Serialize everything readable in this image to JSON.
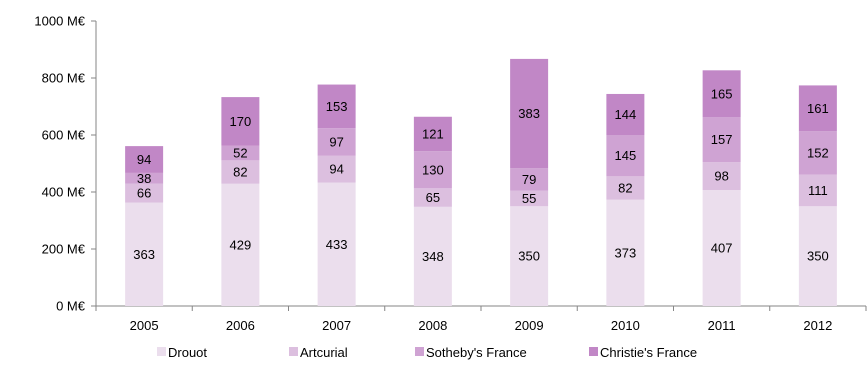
{
  "chart_data": {
    "type": "bar",
    "stacked": true,
    "categories": [
      "2005",
      "2006",
      "2007",
      "2008",
      "2009",
      "2010",
      "2011",
      "2012"
    ],
    "series": [
      {
        "name": "Drouot",
        "color": "#ebdeed",
        "values": [
          363,
          429,
          433,
          348,
          350,
          373,
          407,
          350
        ]
      },
      {
        "name": "Artcurial",
        "color": "#dcbfdf",
        "values": [
          66,
          82,
          94,
          65,
          55,
          82,
          98,
          111
        ]
      },
      {
        "name": "Sotheby's France",
        "color": "#cfa3d3",
        "values": [
          38,
          52,
          97,
          130,
          79,
          145,
          157,
          152
        ]
      },
      {
        "name": "Christie's France",
        "color": "#c187c6",
        "values": [
          94,
          170,
          153,
          121,
          383,
          144,
          165,
          161
        ]
      }
    ],
    "ylim": [
      0,
      1000
    ],
    "yticks": [
      0,
      200,
      400,
      600,
      800,
      1000
    ],
    "ytick_labels": [
      "0  M€",
      "200  M€",
      "400  M€",
      "600  M€",
      "800  M€",
      "1000  M€"
    ],
    "grid": false,
    "legend_position": "bottom"
  }
}
